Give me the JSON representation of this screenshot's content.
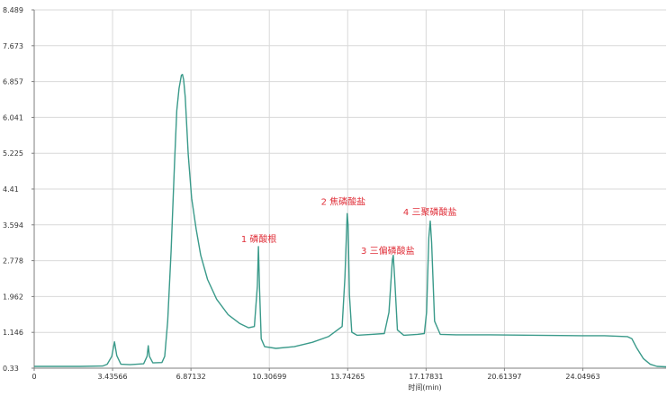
{
  "chart_data": {
    "type": "line",
    "title": "",
    "xlabel": "时间(min)",
    "ylabel": "",
    "xlim": [
      0,
      27.7
    ],
    "ylim": [
      0.33,
      8.489
    ],
    "x_ticks": [
      0,
      3.43566,
      6.87132,
      10.30699,
      13.74265,
      17.17831,
      20.61397,
      24.04963
    ],
    "x_tick_labels": [
      "0",
      "3.43566",
      "6.87132",
      "10.30699",
      "13.74265",
      "17.17831",
      "20.61397",
      "24.04963"
    ],
    "y_ticks": [
      0.33,
      1.146,
      1.962,
      2.778,
      3.594,
      4.41,
      5.225,
      6.041,
      6.857,
      7.673,
      8.489
    ],
    "y_tick_labels": [
      "0.33",
      "1.146",
      "1.962",
      "2.778",
      "3.594",
      "4.41",
      "5.225",
      "6.041",
      "6.857",
      "7.673",
      "8.489"
    ],
    "grid": true,
    "colors": {
      "line": "#3a9a8a",
      "annotation": "#e0303a",
      "grid": "#d9d9d9"
    },
    "series": [
      {
        "x": [
          0,
          1.0,
          2.0,
          3.0,
          3.2,
          3.4,
          3.52,
          3.62,
          3.8,
          4.2,
          4.8,
          4.95,
          5.0,
          5.05,
          5.2,
          5.6,
          5.72,
          5.85,
          6.0,
          6.15,
          6.25,
          6.35,
          6.45,
          6.5,
          6.55,
          6.62,
          6.75,
          6.9,
          7.1,
          7.3,
          7.6,
          8.0,
          8.5,
          9.0,
          9.4,
          9.65,
          9.78,
          9.83,
          9.88,
          9.95,
          10.1,
          10.6,
          11.4,
          12.2,
          12.9,
          13.5,
          13.62,
          13.72,
          13.76,
          13.82,
          13.92,
          14.15,
          14.8,
          15.35,
          15.55,
          15.7,
          15.74,
          15.8,
          15.92,
          16.2,
          16.8,
          17.1,
          17.2,
          17.3,
          17.36,
          17.42,
          17.55,
          17.8,
          18.5,
          20.0,
          22.0,
          24.0,
          25.0,
          26.0,
          26.2,
          26.4,
          26.7,
          27.0,
          27.3,
          27.7
        ],
        "y": [
          0.37,
          0.37,
          0.37,
          0.38,
          0.42,
          0.6,
          0.93,
          0.62,
          0.42,
          0.41,
          0.43,
          0.6,
          0.84,
          0.6,
          0.45,
          0.46,
          0.6,
          1.4,
          3.0,
          5.0,
          6.2,
          6.7,
          7.0,
          7.02,
          6.9,
          6.5,
          5.2,
          4.2,
          3.5,
          2.9,
          2.35,
          1.9,
          1.55,
          1.35,
          1.25,
          1.28,
          2.2,
          3.1,
          2.1,
          1.0,
          0.82,
          0.78,
          0.82,
          0.92,
          1.05,
          1.28,
          2.4,
          3.85,
          3.6,
          2.0,
          1.15,
          1.08,
          1.1,
          1.12,
          1.6,
          2.8,
          2.9,
          2.4,
          1.2,
          1.08,
          1.1,
          1.12,
          1.6,
          3.3,
          3.68,
          3.2,
          1.4,
          1.1,
          1.09,
          1.09,
          1.08,
          1.07,
          1.07,
          1.05,
          1.0,
          0.8,
          0.55,
          0.42,
          0.37,
          0.36
        ]
      }
    ],
    "annotations": [
      {
        "text": "1 磷酸根",
        "x": 9.85,
        "y": 3.2
      },
      {
        "text": "2 焦磷酸盐",
        "x": 13.55,
        "y": 4.05
      },
      {
        "text": "3 三偏磷酸盐",
        "x": 15.5,
        "y": 2.93
      },
      {
        "text": "4 三聚磷酸盐",
        "x": 17.35,
        "y": 3.82
      }
    ]
  }
}
